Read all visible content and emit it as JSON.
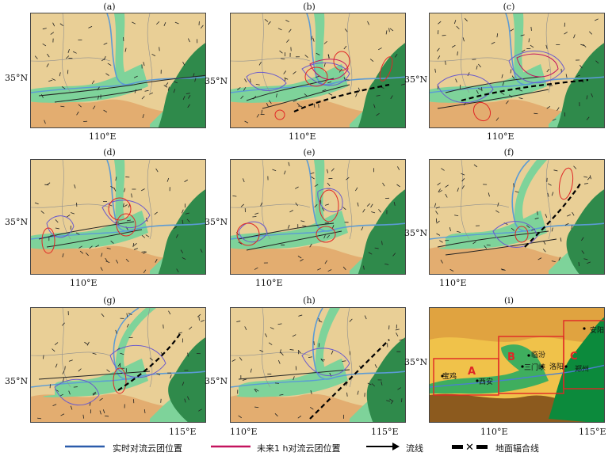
{
  "panels": [
    {
      "label": "(a)",
      "y_label": "35°N",
      "x_labels": [
        "110°E"
      ]
    },
    {
      "label": "(b)",
      "y_label": "35°N",
      "x_labels": [
        "110°E"
      ]
    },
    {
      "label": "(c)",
      "y_label": "35°N",
      "x_labels": [
        "110°E"
      ]
    },
    {
      "label": "(d)",
      "y_label": "35°N",
      "x_labels": [
        "110°E"
      ]
    },
    {
      "label": "(e)",
      "y_label": "35°N",
      "x_labels": [
        "110°E"
      ]
    },
    {
      "label": "(f)",
      "y_label": "35°N",
      "x_labels": [
        "110°E"
      ]
    },
    {
      "label": "(g)",
      "y_label": "35°N",
      "x_labels": [
        "115°E"
      ]
    },
    {
      "label": "(h)",
      "y_label": "35°N",
      "x_labels": [
        "110°E",
        "115°E"
      ]
    },
    {
      "label": "(i)",
      "y_label": "35°N",
      "x_labels": [
        "110°E",
        "115°E"
      ]
    }
  ],
  "overview": {
    "cities": [
      "宝鸡",
      "西安",
      "临汾",
      "三门峡",
      "洛阳",
      "郑州",
      "安阳"
    ],
    "regions": [
      "A",
      "B",
      "C"
    ]
  },
  "legend": {
    "items": [
      {
        "label": "实时对流云团位置",
        "color": "#2b5cab",
        "symbol": "line"
      },
      {
        "label": "未来1 h对流云团位置",
        "color": "#c4145e",
        "symbol": "line"
      },
      {
        "label": "流线",
        "color": "#000000",
        "symbol": "arrow"
      },
      {
        "label": "地面辐合线",
        "color": "#000000",
        "symbol": "dashed-x"
      }
    ]
  },
  "colors": {
    "plain_green": "#7ed39a",
    "loess_tan": "#e9cf96",
    "mountain_orange": "#e0a263",
    "east_dark_green": "#2f8a4b",
    "river_blue": "#5b9bd5",
    "box_red": "#e02626"
  }
}
